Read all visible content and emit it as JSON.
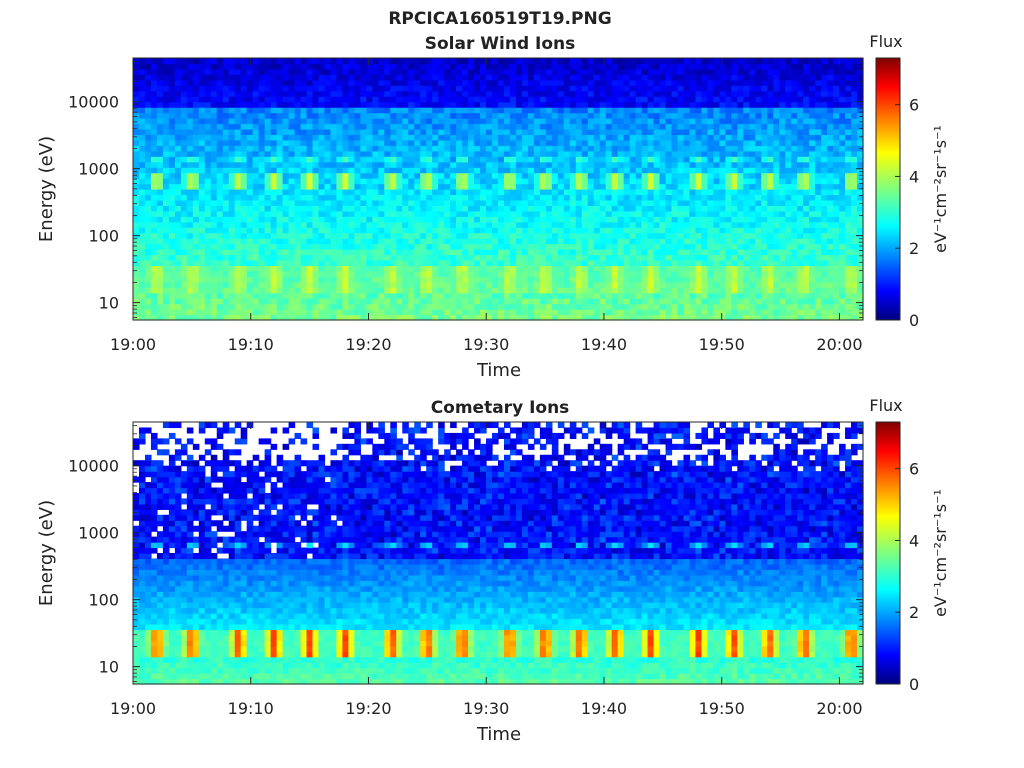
{
  "figure": {
    "title": "RPCICA160519T19.PNG"
  },
  "chart_data": [
    {
      "type": "heatmap",
      "title": "Solar Wind Ions",
      "xlabel": "Time",
      "ylabel": "Energy (eV)",
      "y_scale": "log",
      "ylim": [
        5.5,
        45000
      ],
      "x_ticks": [
        "19:00",
        "19:10",
        "19:20",
        "19:30",
        "19:40",
        "19:50",
        "20:00"
      ],
      "y_ticks": [
        "10",
        "100",
        "1000",
        "10000"
      ],
      "x_range": [
        "19:00",
        "20:02"
      ],
      "colorbar": {
        "label": "Flux",
        "unit": "eV⁻¹cm⁻²sr⁻¹s⁻¹",
        "range": [
          0,
          7.3
        ],
        "ticks": [
          "0",
          "2",
          "4",
          "6"
        ],
        "colormap": "jet"
      },
      "features": [
        {
          "energy_ev": 650,
          "level": 4.3,
          "note": "periodic peaks"
        },
        {
          "energy_ev": 1300,
          "level": 3.3,
          "note": "periodic peaks"
        },
        {
          "energy_ev": 22,
          "level": 4.2,
          "note": "periodic low-energy band"
        }
      ],
      "pulse_times": [
        "19:02",
        "19:05",
        "19:09",
        "19:12",
        "19:15",
        "19:18",
        "19:22",
        "19:25",
        "19:28",
        "19:32",
        "19:35",
        "19:38",
        "19:41",
        "19:44",
        "19:48",
        "19:51",
        "19:54",
        "19:57",
        "20:01"
      ]
    },
    {
      "type": "heatmap",
      "title": "Cometary Ions",
      "xlabel": "Time",
      "ylabel": "Energy (eV)",
      "y_scale": "log",
      "ylim": [
        5.5,
        45000
      ],
      "x_ticks": [
        "19:00",
        "19:10",
        "19:20",
        "19:30",
        "19:40",
        "19:50",
        "20:00"
      ],
      "y_ticks": [
        "10",
        "100",
        "1000",
        "10000"
      ],
      "x_range": [
        "19:00",
        "20:02"
      ],
      "colorbar": {
        "label": "Flux",
        "unit": "eV⁻¹cm⁻²sr⁻¹s⁻¹",
        "range": [
          0,
          7.3
        ],
        "ticks": [
          "0",
          "2",
          "4",
          "6"
        ],
        "colormap": "jet"
      },
      "features": [
        {
          "energy_ev": 22,
          "level": 6.0,
          "note": "periodic low-energy band"
        },
        {
          "energy_ev": 650,
          "level": 2.6,
          "note": "periodic peaks"
        }
      ],
      "pulse_times": [
        "19:02",
        "19:05",
        "19:09",
        "19:12",
        "19:15",
        "19:18",
        "19:22",
        "19:25",
        "19:28",
        "19:32",
        "19:35",
        "19:38",
        "19:41",
        "19:44",
        "19:48",
        "19:51",
        "19:54",
        "19:57",
        "20:01"
      ]
    }
  ]
}
